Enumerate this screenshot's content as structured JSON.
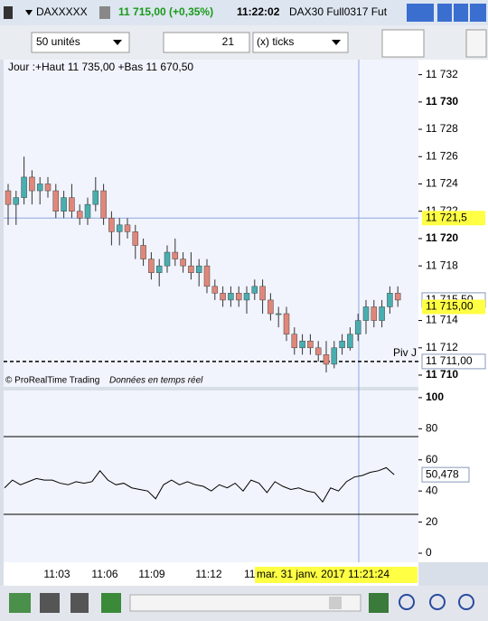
{
  "window": {
    "symbol": "DAXXXXX",
    "price": "11 715,00 (+0,35%)",
    "time": "11:22:02",
    "name": "DAX30 Full0317 Fut"
  },
  "toolbar": {
    "units": "50 unités",
    "count": "21",
    "mode": "(x) ticks"
  },
  "chart_data": [
    {
      "type": "candlestick",
      "header": "Jour :+Haut 11 735,00 +Bas 11 670,50",
      "footer": "© ProRealTime Trading",
      "footer_note": "Données en temps réel",
      "up_color": "#49aeb0",
      "down_color": "#e0877a",
      "open": [
        11723.5,
        11722.5,
        11723,
        11724.5,
        11723.5,
        11724,
        11723.5,
        11722,
        11723,
        11722,
        11721.5,
        11722.5,
        11723.5,
        11721.5,
        11720.5,
        11721,
        11720.5,
        11719.5,
        11718.5,
        11717.5,
        11718,
        11719,
        11718.5,
        11718,
        11717.5,
        11718,
        11716.5,
        11716,
        11715.5,
        11716,
        11715.5,
        11716,
        11716.5,
        11715.5,
        11714.5,
        11714.5,
        11713,
        11712,
        11712.5,
        11712,
        11711.5,
        11710.8,
        11712,
        11712,
        11713,
        11714,
        11715,
        11714,
        11715,
        11716
      ],
      "high": [
        11724,
        11723.5,
        11726,
        11725,
        11724.5,
        11724.5,
        11724,
        11723.5,
        11724,
        11722.5,
        11723,
        11724.5,
        11724,
        11722,
        11721.5,
        11721.5,
        11721,
        11720,
        11719,
        11718.5,
        11719.5,
        11720,
        11719,
        11719,
        11718.5,
        11718.5,
        11717,
        11716.5,
        11716.5,
        11716.5,
        11716.5,
        11717,
        11717,
        11716,
        11715,
        11715,
        11713.5,
        11713,
        11713,
        11712.5,
        11712.5,
        11712.5,
        11713,
        11713.5,
        11714.5,
        11715.5,
        11715.5,
        11715.5,
        11716.5,
        11716.5
      ],
      "low": [
        11721,
        11721,
        11722.5,
        11722.5,
        11722.5,
        11723,
        11721.5,
        11721.5,
        11721.5,
        11721,
        11721,
        11722,
        11721,
        11719.5,
        11719.5,
        11720,
        11718.5,
        11718,
        11717,
        11716.5,
        11717.5,
        11718,
        11717.5,
        11717,
        11716.5,
        11716,
        11715.5,
        11715,
        11715,
        11715,
        11714.5,
        11715.5,
        11714.5,
        11714,
        11713.5,
        11712.5,
        11711.5,
        11711.5,
        11711.5,
        11711,
        11710.2,
        11710.5,
        11711.5,
        11711.8,
        11712.5,
        11713,
        11713.5,
        11713.5,
        11714.5,
        11715
      ],
      "close": [
        11722.5,
        11723,
        11724.5,
        11723.5,
        11724,
        11723.5,
        11722,
        11723,
        11722,
        11721.5,
        11722.5,
        11723.5,
        11721.5,
        11720.5,
        11721,
        11720.5,
        11719.5,
        11718.5,
        11717.5,
        11718,
        11719,
        11718.5,
        11718,
        11717.5,
        11718,
        11716.5,
        11716,
        11715.5,
        11716,
        11715.5,
        11716,
        11716.5,
        11715.5,
        11714.5,
        11714.5,
        11713,
        11712,
        11712.5,
        11712,
        11711.5,
        11710.8,
        11712,
        11712.5,
        11713,
        11714,
        11715,
        11714,
        11715,
        11716,
        11715.5
      ],
      "ylim": [
        11709.14,
        11733.1
      ],
      "yticks": [
        {
          "value": 11732,
          "label": "11 732"
        },
        {
          "value": 11730,
          "label": "11 730"
        },
        {
          "value": 11728,
          "label": "11 728"
        },
        {
          "value": 11726,
          "label": "11 726"
        },
        {
          "value": 11724,
          "label": "11 724"
        },
        {
          "value": 11722,
          "label": "11 722"
        },
        {
          "value": 11720,
          "label": "11 720"
        },
        {
          "value": 11718,
          "label": "11 718"
        },
        {
          "value": 11714,
          "label": "11 714"
        },
        {
          "value": 11712,
          "label": "11 712"
        },
        {
          "value": 11710,
          "label": "11 710"
        }
      ],
      "markers": [
        {
          "value": 11721.5,
          "label": "11 721,5",
          "style": "crosshair"
        },
        {
          "value": 11715.5,
          "label": "11 715,50",
          "style": "outline"
        },
        {
          "value": 11715,
          "label": "11 715,00",
          "style": "last"
        },
        {
          "value": 11711,
          "label": "11 711,00",
          "style": "outline"
        }
      ],
      "pivot": {
        "value": 11711,
        "label": "Piv J"
      }
    },
    {
      "type": "line",
      "color": "#000000",
      "values": [
        42,
        47,
        44,
        46,
        48,
        47,
        47,
        45,
        44,
        46,
        45,
        46,
        53,
        47,
        44,
        45,
        42,
        41,
        40,
        35,
        44,
        47,
        44,
        46,
        44,
        43,
        40,
        44,
        42,
        45,
        40,
        47,
        45,
        39,
        46,
        43,
        41,
        42,
        40,
        39,
        33,
        42,
        40,
        46,
        49,
        50,
        52,
        53,
        55,
        50.478
      ],
      "value_label": "50,478",
      "ylim": [
        -5.8,
        104.6
      ],
      "yticks": [
        0,
        20,
        40,
        60,
        80,
        100
      ],
      "levels": [
        25,
        75
      ],
      "xtick_labels": [
        "11:03",
        "11:06",
        "11:09",
        "11:12",
        "11"
      ],
      "cursor_label": "mar. 31 janv. 2017 11:21:24"
    }
  ]
}
